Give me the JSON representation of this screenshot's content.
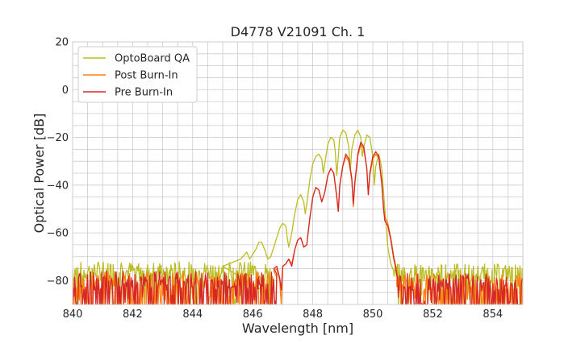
{
  "chart_data": {
    "type": "line",
    "title": "D4778 V21091 Ch. 1",
    "xlabel": "Wavelength [nm]",
    "ylabel": "Optical Power [dB]",
    "xlim": [
      840,
      855
    ],
    "ylim": [
      -90,
      20
    ],
    "xticks": [
      840,
      842,
      844,
      846,
      848,
      850,
      852,
      854
    ],
    "yticks": [
      20,
      0,
      -20,
      -40,
      -60,
      -80
    ],
    "xtick_labels": [
      "840",
      "842",
      "844",
      "846",
      "848",
      "850",
      "852",
      "854"
    ],
    "ytick_labels": [
      "20",
      "0",
      "−20",
      "−40",
      "−60",
      "−80"
    ],
    "grid": true,
    "legend_position": "top-left",
    "series": [
      {
        "name": "OptoBoard QA",
        "color": "#bcbd22",
        "noise_floor": -76,
        "noise_span": [
          840,
          846.6
        ],
        "noise_floor_right": -77,
        "noise_span_right": [
          850.7,
          855
        ],
        "points": [
          [
            845.0,
            -74
          ],
          [
            845.4,
            -72
          ],
          [
            845.6,
            -71
          ],
          [
            845.8,
            -68
          ],
          [
            845.9,
            -71
          ],
          [
            846.0,
            -69
          ],
          [
            846.1,
            -67
          ],
          [
            846.2,
            -64
          ],
          [
            846.3,
            -64
          ],
          [
            846.4,
            -67
          ],
          [
            846.5,
            -71
          ],
          [
            846.6,
            -70
          ],
          [
            846.7,
            -66
          ],
          [
            846.8,
            -62
          ],
          [
            846.9,
            -58
          ],
          [
            847.0,
            -56
          ],
          [
            847.1,
            -57
          ],
          [
            847.15,
            -62
          ],
          [
            847.2,
            -66
          ],
          [
            847.3,
            -60
          ],
          [
            847.4,
            -52
          ],
          [
            847.5,
            -46
          ],
          [
            847.6,
            -44
          ],
          [
            847.7,
            -47
          ],
          [
            847.75,
            -52
          ],
          [
            847.8,
            -48
          ],
          [
            847.9,
            -38
          ],
          [
            848.0,
            -31
          ],
          [
            848.1,
            -28
          ],
          [
            848.2,
            -27
          ],
          [
            848.3,
            -29
          ],
          [
            848.35,
            -35
          ],
          [
            848.4,
            -31
          ],
          [
            848.5,
            -23
          ],
          [
            848.6,
            -20
          ],
          [
            848.7,
            -21
          ],
          [
            848.75,
            -26
          ],
          [
            848.8,
            -36
          ],
          [
            848.85,
            -28
          ],
          [
            848.9,
            -20
          ],
          [
            849.0,
            -17
          ],
          [
            849.1,
            -18
          ],
          [
            849.2,
            -24
          ],
          [
            849.25,
            -34
          ],
          [
            849.3,
            -25
          ],
          [
            849.4,
            -19
          ],
          [
            849.5,
            -17
          ],
          [
            849.6,
            -20
          ],
          [
            849.65,
            -28
          ],
          [
            849.7,
            -24
          ],
          [
            849.8,
            -19
          ],
          [
            849.9,
            -20
          ],
          [
            850.0,
            -28
          ],
          [
            850.05,
            -40
          ],
          [
            850.1,
            -32
          ],
          [
            850.2,
            -27
          ],
          [
            850.3,
            -33
          ],
          [
            850.4,
            -50
          ],
          [
            850.5,
            -66
          ],
          [
            850.6,
            -73
          ],
          [
            850.7,
            -76
          ]
        ]
      },
      {
        "name": "Post Burn-In",
        "color": "#ff7f0e",
        "noise_floor": -80,
        "noise_span": [
          840,
          846.8
        ],
        "noise_floor_right": -81,
        "noise_span_right": [
          850.8,
          855
        ],
        "points": [
          [
            846.7,
            -76
          ],
          [
            846.8,
            -75
          ],
          [
            846.9,
            -80
          ],
          [
            846.95,
            -90
          ],
          [
            847.0,
            -74
          ],
          [
            847.1,
            -73
          ],
          [
            847.2,
            -71
          ],
          [
            847.3,
            -73
          ],
          [
            847.4,
            -67
          ],
          [
            847.5,
            -63
          ],
          [
            847.6,
            -62
          ],
          [
            847.7,
            -66
          ],
          [
            847.8,
            -65
          ],
          [
            847.9,
            -54
          ],
          [
            848.0,
            -45
          ],
          [
            848.1,
            -41
          ],
          [
            848.2,
            -42
          ],
          [
            848.3,
            -47
          ],
          [
            848.4,
            -43
          ],
          [
            848.5,
            -36
          ],
          [
            848.6,
            -33
          ],
          [
            848.7,
            -35
          ],
          [
            848.8,
            -45
          ],
          [
            848.85,
            -51
          ],
          [
            848.9,
            -40
          ],
          [
            849.0,
            -32
          ],
          [
            849.1,
            -28
          ],
          [
            849.2,
            -30
          ],
          [
            849.3,
            -38
          ],
          [
            849.35,
            -49
          ],
          [
            849.4,
            -40
          ],
          [
            849.5,
            -28
          ],
          [
            849.6,
            -23
          ],
          [
            849.7,
            -25
          ],
          [
            849.8,
            -33
          ],
          [
            849.85,
            -44
          ],
          [
            849.9,
            -36
          ],
          [
            850.0,
            -29
          ],
          [
            850.1,
            -27
          ],
          [
            850.2,
            -29
          ],
          [
            850.3,
            -40
          ],
          [
            850.35,
            -48
          ],
          [
            850.4,
            -53
          ],
          [
            850.5,
            -56
          ],
          [
            850.6,
            -62
          ],
          [
            850.7,
            -70
          ],
          [
            850.8,
            -76
          ]
        ]
      },
      {
        "name": "Pre Burn-In",
        "color": "#d62728",
        "noise_floor": -80,
        "noise_span": [
          840,
          846.8
        ],
        "noise_floor_right": -81,
        "noise_span_right": [
          850.8,
          855
        ],
        "points": [
          [
            846.7,
            -75
          ],
          [
            846.8,
            -74
          ],
          [
            846.9,
            -79
          ],
          [
            846.95,
            -84
          ],
          [
            847.0,
            -74
          ],
          [
            847.1,
            -73
          ],
          [
            847.2,
            -71
          ],
          [
            847.3,
            -74
          ],
          [
            847.4,
            -67
          ],
          [
            847.5,
            -63
          ],
          [
            847.6,
            -62
          ],
          [
            847.7,
            -66
          ],
          [
            847.8,
            -65
          ],
          [
            847.9,
            -54
          ],
          [
            848.0,
            -45
          ],
          [
            848.1,
            -41
          ],
          [
            848.2,
            -42
          ],
          [
            848.3,
            -47
          ],
          [
            848.4,
            -43
          ],
          [
            848.5,
            -36
          ],
          [
            848.6,
            -33
          ],
          [
            848.7,
            -35
          ],
          [
            848.8,
            -45
          ],
          [
            848.85,
            -51
          ],
          [
            848.9,
            -40
          ],
          [
            849.0,
            -32
          ],
          [
            849.1,
            -27
          ],
          [
            849.2,
            -29
          ],
          [
            849.3,
            -37
          ],
          [
            849.35,
            -48
          ],
          [
            849.4,
            -39
          ],
          [
            849.5,
            -27
          ],
          [
            849.6,
            -22
          ],
          [
            849.7,
            -24
          ],
          [
            849.8,
            -33
          ],
          [
            849.85,
            -44
          ],
          [
            849.9,
            -35
          ],
          [
            850.0,
            -28
          ],
          [
            850.1,
            -26
          ],
          [
            850.2,
            -28
          ],
          [
            850.3,
            -39
          ],
          [
            850.35,
            -49
          ],
          [
            850.4,
            -55
          ],
          [
            850.5,
            -57
          ],
          [
            850.6,
            -63
          ],
          [
            850.7,
            -71
          ],
          [
            850.8,
            -77
          ]
        ]
      }
    ]
  }
}
